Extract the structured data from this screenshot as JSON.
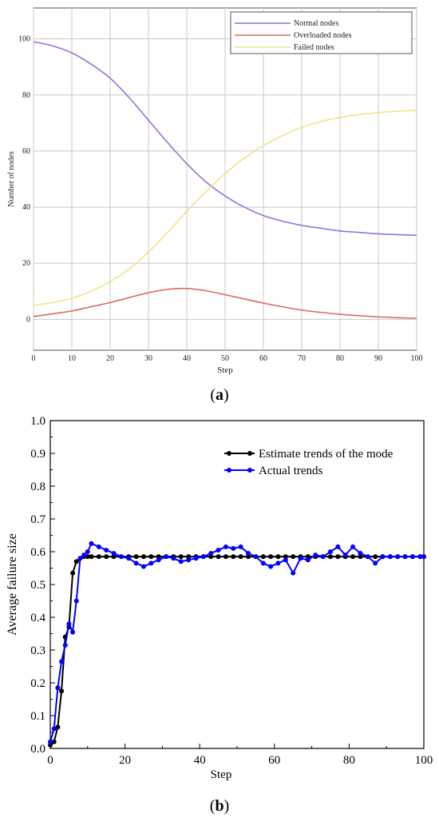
{
  "chart_data": [
    {
      "type": "line",
      "caption": "(a)",
      "caption_letter": "a",
      "xlabel": "Step",
      "ylabel": "Number of nodes",
      "xlim": [
        0,
        100
      ],
      "ylim": [
        -11,
        111
      ],
      "xticks": [
        0,
        10,
        20,
        30,
        40,
        50,
        60,
        70,
        80,
        90,
        100
      ],
      "yticks": [
        0,
        20,
        40,
        60,
        80,
        100
      ],
      "grid": true,
      "legend_position": "top-right",
      "series": [
        {
          "name": "Normal nodes",
          "color": "#7b7fd8",
          "x": [
            0,
            5,
            10,
            15,
            20,
            25,
            30,
            35,
            40,
            45,
            50,
            55,
            60,
            65,
            70,
            75,
            80,
            85,
            90,
            95,
            100
          ],
          "y": [
            99,
            97.5,
            95,
            91,
            86,
            79,
            71,
            63,
            55.5,
            49,
            44,
            40,
            37,
            35,
            33.5,
            32.5,
            31.5,
            31,
            30.5,
            30.2,
            30
          ]
        },
        {
          "name": "Overloaded nodes",
          "color": "#d96a6a",
          "x": [
            0,
            5,
            10,
            15,
            20,
            25,
            30,
            35,
            40,
            45,
            50,
            55,
            60,
            65,
            70,
            75,
            80,
            85,
            90,
            95,
            100
          ],
          "y": [
            1,
            2,
            3,
            4.5,
            6,
            7.8,
            9.5,
            10.7,
            11,
            10.2,
            8.8,
            7.3,
            5.8,
            4.5,
            3.3,
            2.5,
            1.8,
            1.3,
            0.9,
            0.6,
            0.4
          ]
        },
        {
          "name": "Failed nodes",
          "color": "#f0e48a",
          "x": [
            0,
            5,
            10,
            15,
            20,
            25,
            30,
            35,
            40,
            45,
            50,
            55,
            60,
            65,
            70,
            75,
            80,
            85,
            90,
            95,
            100
          ],
          "y": [
            5,
            6,
            7.5,
            10,
            13.5,
            18,
            24,
            31,
            38.5,
            45.5,
            52,
            57.5,
            62,
            65.5,
            68.5,
            70.5,
            72,
            73,
            73.7,
            74.2,
            74.5
          ]
        }
      ]
    },
    {
      "type": "line",
      "caption": "(b)",
      "caption_letter": "b",
      "xlabel": "Step",
      "ylabel": "Average failure size",
      "xlim": [
        0,
        100
      ],
      "ylim": [
        0,
        1.0
      ],
      "xticks": [
        0,
        20,
        40,
        60,
        80,
        100
      ],
      "yticks": [
        0.0,
        0.1,
        0.2,
        0.3,
        0.4,
        0.5,
        0.6,
        0.7,
        0.8,
        0.9,
        1.0
      ],
      "grid": false,
      "legend_position": "top-right",
      "series": [
        {
          "name": "Estimate trends of the mode",
          "color": "#000000",
          "marker": "circle",
          "x": [
            0,
            1,
            2,
            3,
            4,
            5,
            6,
            7,
            8,
            9,
            10,
            11,
            13,
            15,
            17,
            19,
            21,
            23,
            25,
            27,
            29,
            31,
            33,
            35,
            37,
            39,
            41,
            43,
            45,
            47,
            49,
            51,
            53,
            55,
            57,
            59,
            61,
            63,
            65,
            67,
            69,
            71,
            73,
            75,
            77,
            79,
            81,
            83,
            85,
            87,
            89,
            91,
            93,
            95,
            97,
            99,
            100
          ],
          "y": [
            0.01,
            0.02,
            0.065,
            0.175,
            0.34,
            0.37,
            0.535,
            0.57,
            0.58,
            0.585,
            0.585,
            0.585,
            0.585,
            0.585,
            0.585,
            0.585,
            0.585,
            0.585,
            0.585,
            0.585,
            0.585,
            0.585,
            0.585,
            0.585,
            0.585,
            0.585,
            0.585,
            0.585,
            0.585,
            0.585,
            0.585,
            0.585,
            0.585,
            0.585,
            0.585,
            0.585,
            0.585,
            0.585,
            0.585,
            0.585,
            0.585,
            0.585,
            0.585,
            0.585,
            0.585,
            0.585,
            0.585,
            0.585,
            0.585,
            0.585,
            0.585,
            0.585,
            0.585,
            0.585,
            0.585,
            0.585,
            0.585
          ]
        },
        {
          "name": "Actual trends",
          "color": "#0000ff",
          "marker": "circle",
          "x": [
            0,
            1,
            2,
            3,
            4,
            5,
            6,
            7,
            8,
            9,
            10,
            11,
            13,
            15,
            17,
            19,
            21,
            23,
            25,
            27,
            29,
            31,
            33,
            35,
            37,
            39,
            41,
            43,
            45,
            47,
            49,
            51,
            53,
            55,
            57,
            59,
            61,
            63,
            65,
            67,
            69,
            71,
            73,
            75,
            77,
            79,
            81,
            83,
            85,
            87,
            89,
            91,
            93,
            95,
            97,
            99,
            100
          ],
          "y": [
            0.02,
            0.06,
            0.185,
            0.265,
            0.315,
            0.38,
            0.355,
            0.45,
            0.58,
            0.59,
            0.6,
            0.625,
            0.615,
            0.605,
            0.595,
            0.585,
            0.58,
            0.565,
            0.555,
            0.565,
            0.575,
            0.585,
            0.58,
            0.57,
            0.575,
            0.58,
            0.585,
            0.595,
            0.605,
            0.615,
            0.61,
            0.615,
            0.595,
            0.585,
            0.565,
            0.555,
            0.565,
            0.575,
            0.535,
            0.58,
            0.575,
            0.59,
            0.585,
            0.6,
            0.615,
            0.59,
            0.615,
            0.595,
            0.585,
            0.565,
            0.585,
            0.585,
            0.585,
            0.585,
            0.585,
            0.585,
            0.585
          ]
        }
      ]
    }
  ]
}
